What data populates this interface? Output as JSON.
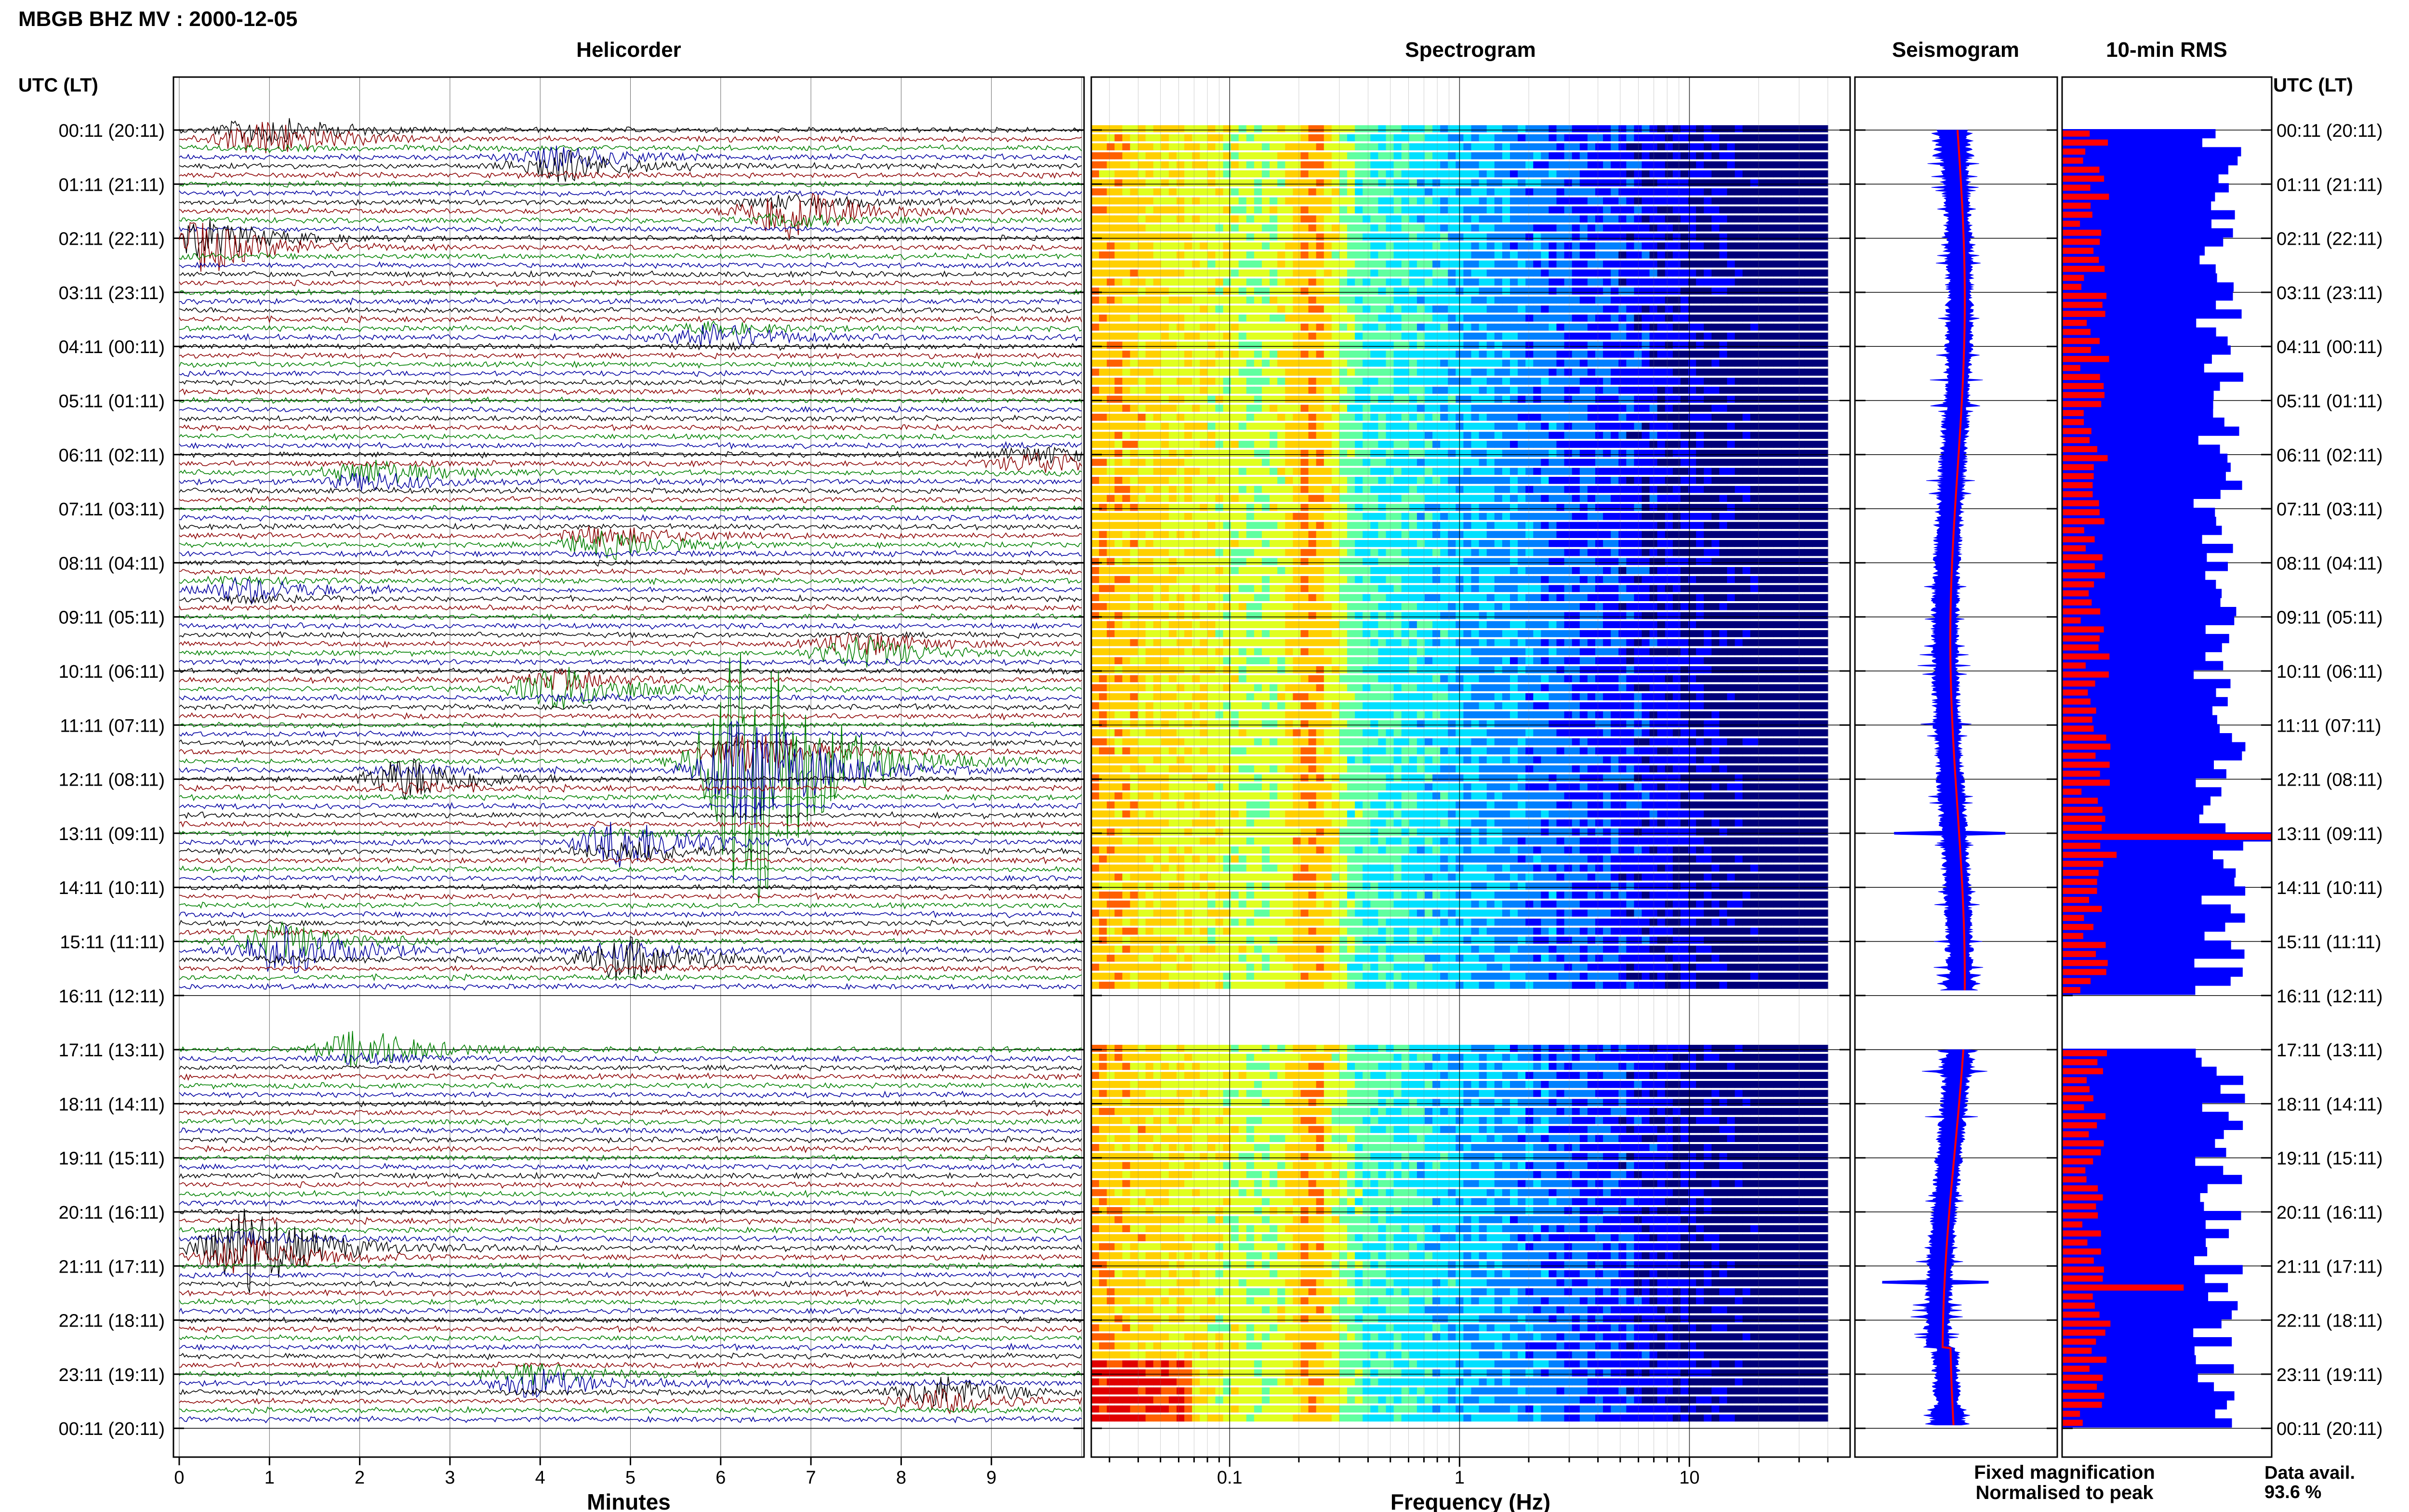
{
  "figure_title": "MBGB BHZ MV : 2000-12-05",
  "panels": {
    "helicorder": "Helicorder",
    "spectrogram": "Spectrogram",
    "seismogram": "Seismogram",
    "rms": "10-min RMS"
  },
  "utc_label_left": "UTC (LT)",
  "utc_label_right": "UTC (LT)",
  "time_labels": [
    "00:11 (20:11)",
    "01:11 (21:11)",
    "02:11 (22:11)",
    "03:11 (23:11)",
    "04:11 (00:11)",
    "05:11 (01:11)",
    "06:11 (02:11)",
    "07:11 (03:11)",
    "08:11 (04:11)",
    "09:11 (05:11)",
    "10:11 (06:11)",
    "11:11 (07:11)",
    "12:11 (08:11)",
    "13:11 (09:11)",
    "14:11 (10:11)",
    "15:11 (11:11)",
    "16:11 (12:11)",
    "17:11 (13:11)",
    "18:11 (14:11)",
    "19:11 (15:11)",
    "20:11 (16:11)",
    "21:11 (17:11)",
    "22:11 (18:11)",
    "23:11 (19:11)",
    "00:11 (20:11)"
  ],
  "x_axis": {
    "helicorder": {
      "label": "Minutes",
      "ticks": [
        "0",
        "1",
        "2",
        "3",
        "4",
        "5",
        "6",
        "7",
        "8",
        "9"
      ]
    },
    "spectrogram": {
      "label": "Frequency (Hz)",
      "ticks": [
        "0.1",
        "1",
        "10"
      ],
      "scale": "log"
    }
  },
  "legend": {
    "fixed": "Fixed magnification",
    "normalised": "Normalised to peak",
    "fixed_color": "#0000ff",
    "normalised_color": "#ff0000"
  },
  "data_avail": {
    "label": "Data avail.",
    "value": "93.6 %"
  },
  "colors": {
    "trace_cycle": [
      "#000000",
      "#8b0000",
      "#008000",
      "#0000a0"
    ],
    "seis_fill": "#0000ff",
    "norm_line": "#ff0000",
    "rms_fixed": "#0000ff",
    "rms_norm": "#ff0000"
  },
  "chart_data": [
    {
      "type": "line",
      "name": "helicorder",
      "xlabel": "Minutes",
      "xlim": [
        0,
        10
      ],
      "rows_per_hour": 6,
      "gap_hours": [
        16
      ],
      "events": [
        {
          "hour": 0.1,
          "minute": 1.0,
          "amp": 1.2
        },
        {
          "hour": 0.6,
          "minute": 4.3,
          "amp": 1.0
        },
        {
          "hour": 1.5,
          "minute": 6.8,
          "amp": 1.5
        },
        {
          "hour": 2.1,
          "minute": 0.3,
          "amp": 1.7
        },
        {
          "hour": 3.8,
          "minute": 6.0,
          "amp": 0.7
        },
        {
          "hour": 6.1,
          "minute": 9.6,
          "amp": 0.7
        },
        {
          "hour": 6.4,
          "minute": 2.2,
          "amp": 0.8
        },
        {
          "hour": 7.6,
          "minute": 4.8,
          "amp": 0.9
        },
        {
          "hour": 8.5,
          "minute": 0.8,
          "amp": 0.6
        },
        {
          "hour": 9.6,
          "minute": 7.6,
          "amp": 1.0
        },
        {
          "hour": 10.3,
          "minute": 4.3,
          "amp": 1.2
        },
        {
          "hour": 11.7,
          "minute": 6.4,
          "amp": 9.0
        },
        {
          "hour": 12.0,
          "minute": 2.6,
          "amp": 1.1
        },
        {
          "hour": 13.2,
          "minute": 5.0,
          "amp": 1.4
        },
        {
          "hour": 15.1,
          "minute": 1.2,
          "amp": 1.6
        },
        {
          "hour": 15.3,
          "minute": 5.0,
          "amp": 1.2
        },
        {
          "hour": 17.0,
          "minute": 2.1,
          "amp": 1.0
        },
        {
          "hour": 20.7,
          "minute": 0.8,
          "amp": 2.5
        },
        {
          "hour": 23.1,
          "minute": 4.0,
          "amp": 0.9
        },
        {
          "hour": 23.4,
          "minute": 8.5,
          "amp": 1.0
        }
      ]
    },
    {
      "type": "heatmap",
      "name": "spectrogram",
      "xlabel": "Frequency (Hz)",
      "xlim": [
        0.025,
        50
      ],
      "scale": "log",
      "data_fmax": 40,
      "peak_band_hz": [
        0.18,
        0.3
      ],
      "colormap": [
        "#00007a",
        "#0000ff",
        "#0080ff",
        "#00e0ff",
        "#60ffa0",
        "#e0ff20",
        "#ffd000",
        "#ff6000",
        "#e00000"
      ]
    },
    {
      "type": "line",
      "name": "seismogram",
      "note_series": [
        "Fixed magnification",
        "Normalised to peak"
      ]
    },
    {
      "type": "bar",
      "name": "rms",
      "interval_min": 10,
      "series": [
        {
          "name": "Fixed magnification",
          "color": "#0000ff",
          "level": 0.75
        },
        {
          "name": "Normalised to peak",
          "color": "#ff0000",
          "level": 0.15
        }
      ],
      "spikes": [
        {
          "hour": 13.0,
          "value": 1.0
        },
        {
          "hour": 21.3,
          "value": 0.58
        },
        {
          "hour": 13.4,
          "value": 0.26
        }
      ]
    }
  ]
}
